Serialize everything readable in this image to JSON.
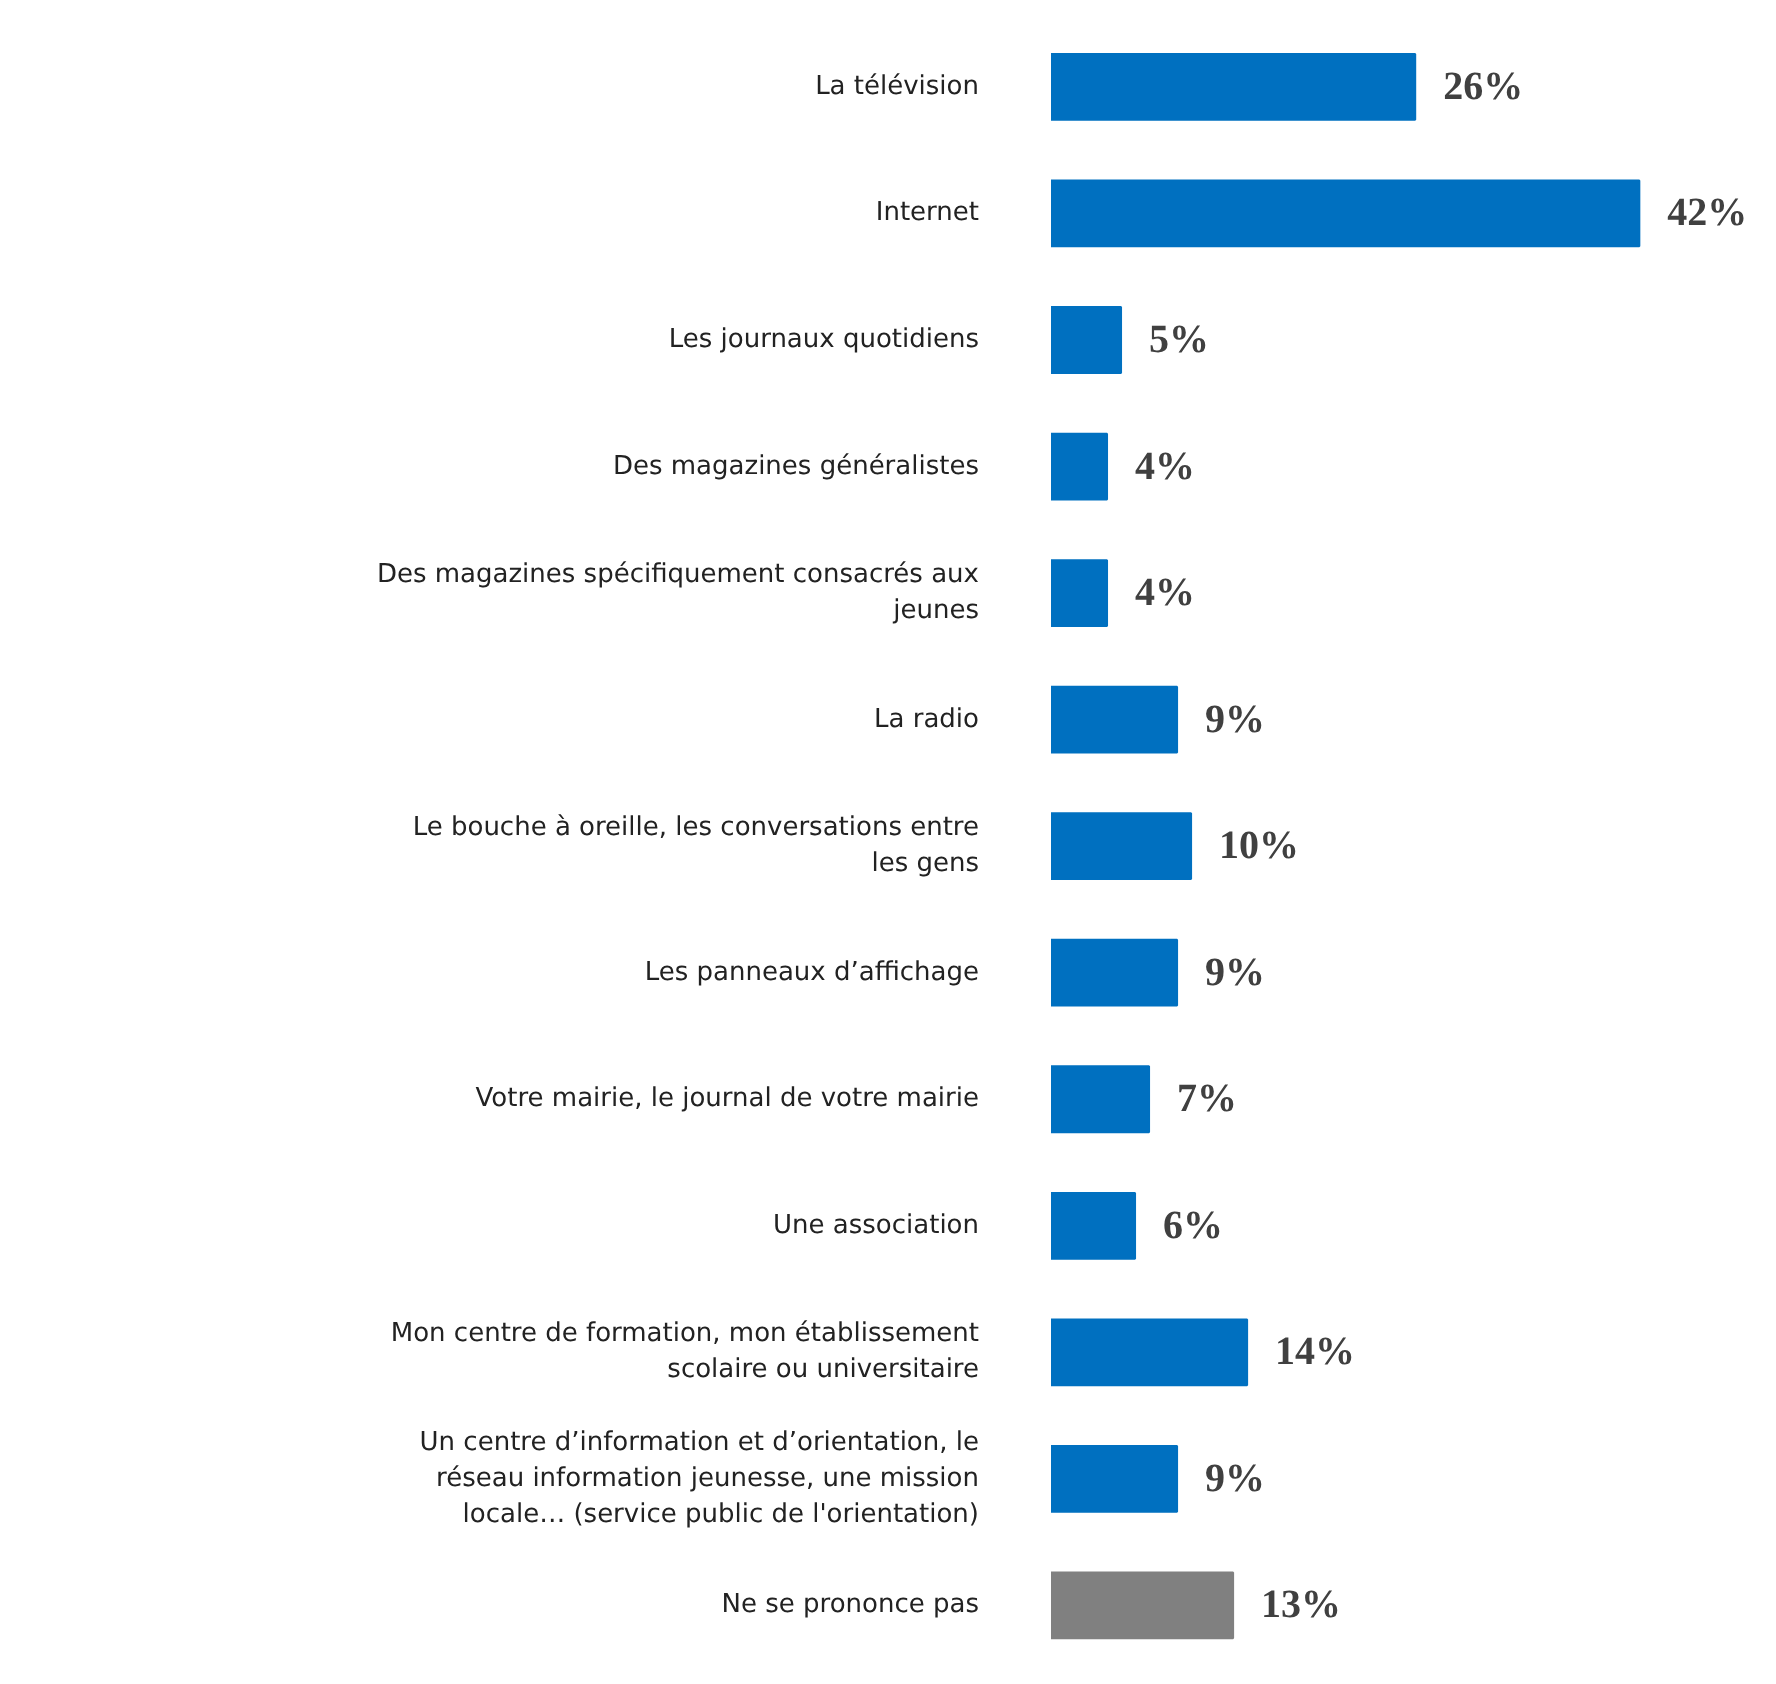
{
  "chart_data": {
    "type": "bar",
    "orientation": "horizontal",
    "grid": false,
    "value_labels": [
      "26%",
      "42%",
      "5%",
      "4%",
      "4%",
      "9%",
      "10%",
      "9%",
      "7%",
      "6%",
      "14%",
      "9%",
      "13%"
    ],
    "categories": [
      "La télévision",
      "Internet",
      "Les journaux quotidiens",
      "Des magazines généralistes",
      "Des magazines spécifiquement consacrés aux\njeunes",
      "La radio",
      "Le bouche à oreille, les conversations entre\nles gens",
      "Les panneaux d’affichage",
      "Votre mairie, le journal de votre mairie",
      "Une association",
      "Mon centre de formation, mon établissement\nscolaire ou universitaire",
      "Un centre d’information et d’orientation, le\nréseau information jeunesse, une mission\nlocale… (service public de l'orientation)",
      "Ne se prononce pas"
    ],
    "values": [
      26,
      42,
      5,
      4,
      4,
      9,
      10,
      9,
      7,
      6,
      14,
      9,
      13
    ],
    "colors": [
      "#0070c0",
      "#0070c0",
      "#0070c0",
      "#0070c0",
      "#0070c0",
      "#0070c0",
      "#0070c0",
      "#0070c0",
      "#0070c0",
      "#0070c0",
      "#0070c0",
      "#0070c0",
      "#808080"
    ]
  }
}
